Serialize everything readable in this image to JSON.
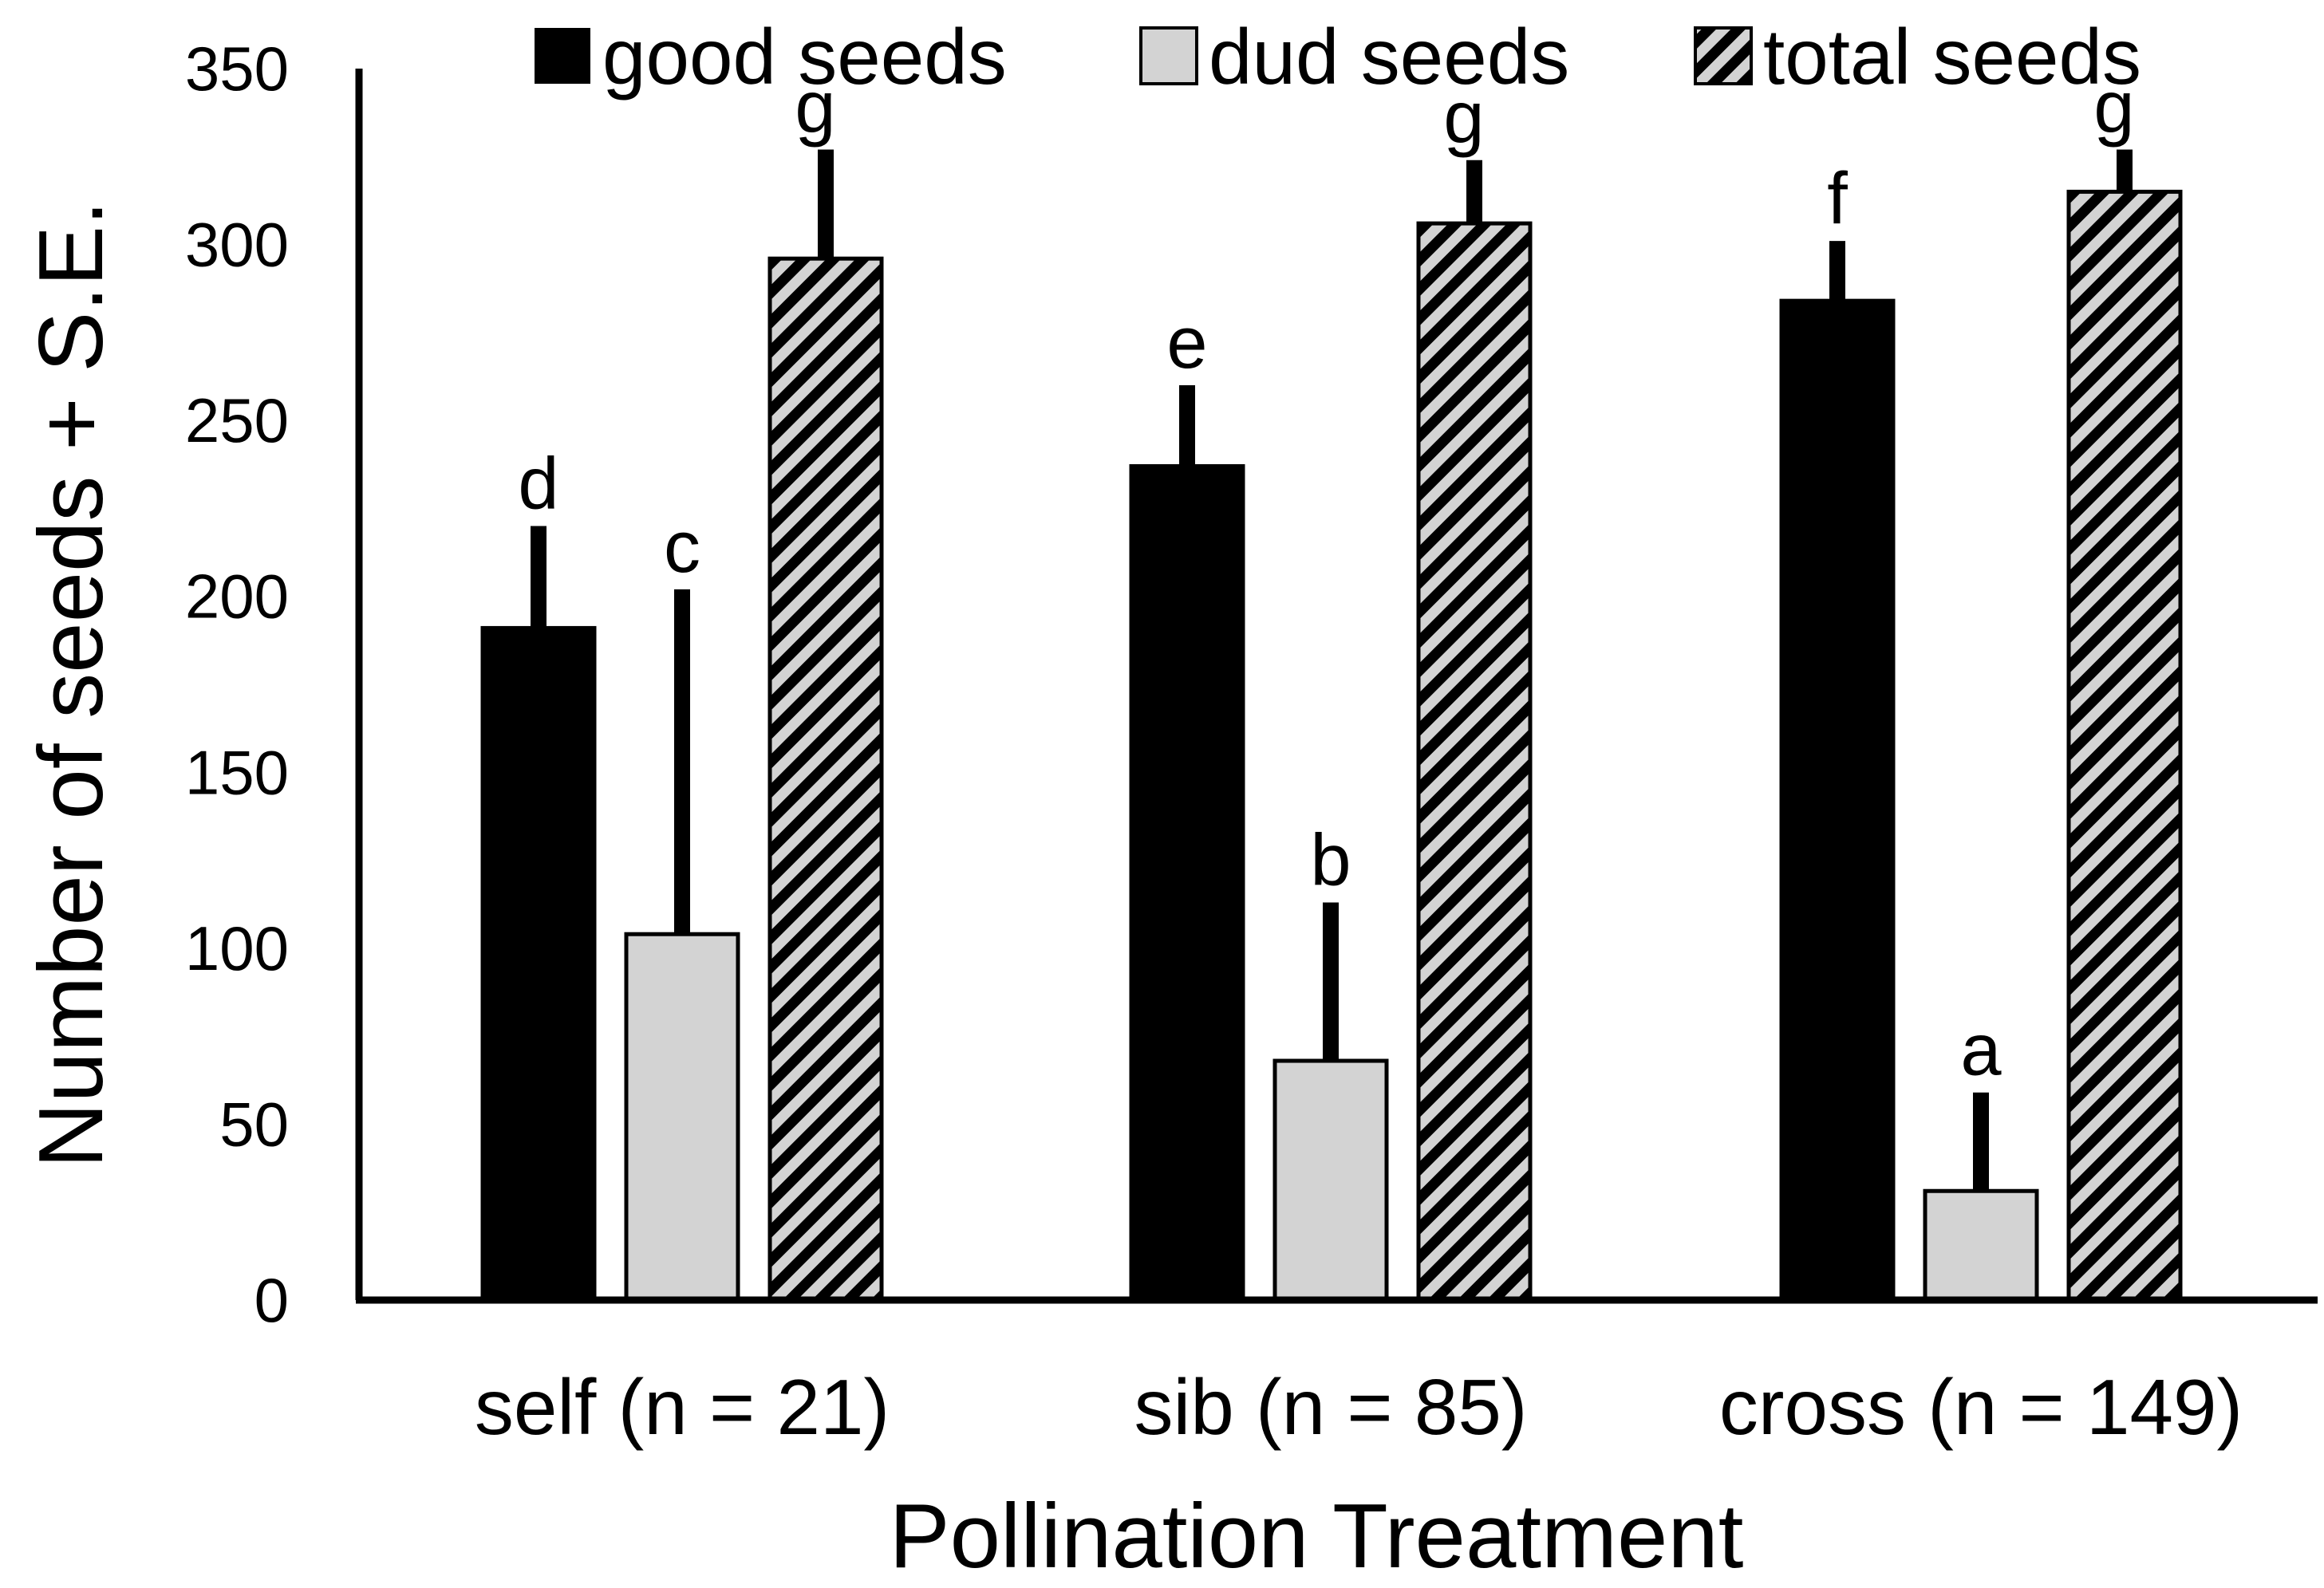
{
  "chart_data": {
    "type": "bar",
    "title": "",
    "xlabel": "Pollination Treatment",
    "ylabel": "Number of seeds + S.E.",
    "ylim": [
      0,
      350
    ],
    "yticks": [
      0,
      50,
      100,
      150,
      200,
      250,
      300,
      350
    ],
    "grid": false,
    "legend_position": "top",
    "categories": [
      "self (n = 21)",
      "sib (n = 85)",
      "cross (n = 149)"
    ],
    "series": [
      {
        "name": "good seeds",
        "fill": "solid",
        "color": "#000000",
        "values": [
          191,
          237,
          284
        ],
        "se": [
          29,
          23,
          17
        ],
        "letters": [
          "d",
          "e",
          "f"
        ]
      },
      {
        "name": "dud seeds",
        "fill": "light",
        "color": "#d3d3d3",
        "values": [
          104,
          68,
          31
        ],
        "se": [
          98,
          45,
          28
        ],
        "letters": [
          "c",
          "b",
          "a"
        ]
      },
      {
        "name": "total seeds",
        "fill": "hatched",
        "color": "#d3d3d3",
        "values": [
          296,
          306,
          315
        ],
        "se": [
          31,
          18,
          12
        ],
        "letters": [
          "g",
          "g",
          "g"
        ]
      }
    ]
  }
}
